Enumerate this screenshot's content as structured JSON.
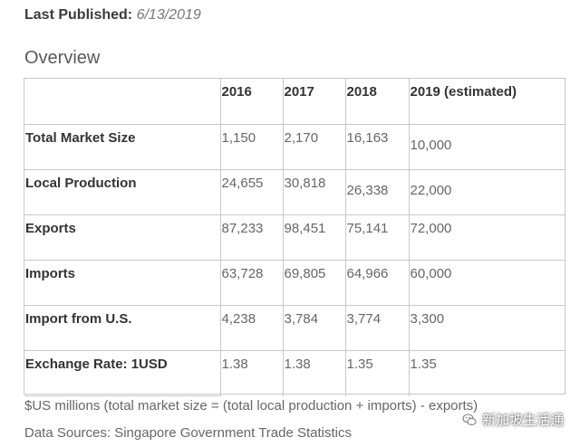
{
  "header": {
    "published_label": "Last Published:",
    "published_date": "6/13/2019",
    "section_title": "Overview"
  },
  "table": {
    "columns": [
      "",
      "2016",
      "2017",
      "2018",
      "2019 (estimated)"
    ],
    "rows": [
      {
        "label": "Total Market Size",
        "values": [
          "1,150",
          "2,170",
          "16,163",
          "10,000"
        ]
      },
      {
        "label": "Local Production",
        "values": [
          "24,655",
          "30,818",
          "26,338",
          "22,000"
        ]
      },
      {
        "label": "Exports",
        "values": [
          "87,233",
          "98,451",
          "75,141",
          "72,000"
        ]
      },
      {
        "label": "Imports",
        "values": [
          "63,728",
          "69,805",
          "64,966",
          "60,000"
        ]
      },
      {
        "label": "Import from U.S.",
        "values": [
          "4,238",
          "3,784",
          "3,774",
          "3,300"
        ]
      },
      {
        "label": "Exchange Rate: 1USD",
        "values": [
          "1.38",
          "1.38",
          "1.35",
          "1.35"
        ]
      }
    ]
  },
  "footer": {
    "note": "$US millions (total market size = (total local production + imports) - exports)",
    "source": "Data Sources: Singapore Government Trade Statistics"
  },
  "watermark": {
    "text": "新加坡生活通",
    "icon": "wechat-icon"
  }
}
